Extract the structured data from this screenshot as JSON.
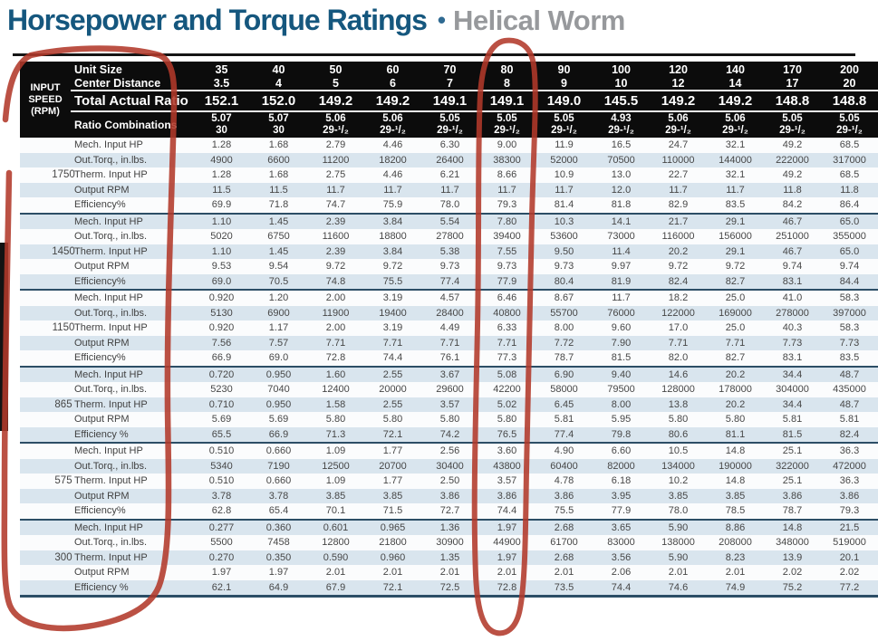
{
  "title": {
    "main": "Horsepower and Torque Ratings",
    "separator": "•",
    "sub": "Helical Worm"
  },
  "table": {
    "corner_label": "INPUT\nSPEED\n(RPM)",
    "header_labels": {
      "unit_size": "Unit Size",
      "center_distance": "Center Distance",
      "total_ratio": "Total Actual Ratio",
      "ratio_combos": "Ratio Combinations"
    },
    "columns": [
      {
        "unit_size": "35",
        "center_distance": "3.5",
        "total_ratio": "152.1",
        "combo_top": "5.07",
        "combo_bottom": "30"
      },
      {
        "unit_size": "40",
        "center_distance": "4",
        "total_ratio": "152.0",
        "combo_top": "5.07",
        "combo_bottom": "30"
      },
      {
        "unit_size": "50",
        "center_distance": "5",
        "total_ratio": "149.2",
        "combo_top": "5.06",
        "combo_bottom": "29-¹/₂"
      },
      {
        "unit_size": "60",
        "center_distance": "6",
        "total_ratio": "149.2",
        "combo_top": "5.06",
        "combo_bottom": "29-¹/₂"
      },
      {
        "unit_size": "70",
        "center_distance": "7",
        "total_ratio": "149.1",
        "combo_top": "5.05",
        "combo_bottom": "29-¹/₂"
      },
      {
        "unit_size": "80",
        "center_distance": "8",
        "total_ratio": "149.1",
        "combo_top": "5.05",
        "combo_bottom": "29-¹/₂"
      },
      {
        "unit_size": "90",
        "center_distance": "9",
        "total_ratio": "149.0",
        "combo_top": "5.05",
        "combo_bottom": "29-¹/₂"
      },
      {
        "unit_size": "100",
        "center_distance": "10",
        "total_ratio": "145.5",
        "combo_top": "4.93",
        "combo_bottom": "29-¹/₂"
      },
      {
        "unit_size": "120",
        "center_distance": "12",
        "total_ratio": "149.2",
        "combo_top": "5.06",
        "combo_bottom": "29-¹/₂"
      },
      {
        "unit_size": "140",
        "center_distance": "14",
        "total_ratio": "149.2",
        "combo_top": "5.06",
        "combo_bottom": "29-¹/₂"
      },
      {
        "unit_size": "170",
        "center_distance": "17",
        "total_ratio": "148.8",
        "combo_top": "5.05",
        "combo_bottom": "29-¹/₂"
      },
      {
        "unit_size": "200",
        "center_distance": "20",
        "total_ratio": "148.8",
        "combo_top": "5.05",
        "combo_bottom": "29-¹/₂"
      }
    ],
    "groups": [
      {
        "rpm": "1750",
        "rows": [
          {
            "label": "Mech. Input HP",
            "values": [
              "1.28",
              "1.68",
              "2.79",
              "4.46",
              "6.30",
              "9.00",
              "11.9",
              "16.5",
              "24.7",
              "32.1",
              "49.2",
              "68.5"
            ]
          },
          {
            "label": "Out.Torq., in.lbs.",
            "values": [
              "4900",
              "6600",
              "11200",
              "18200",
              "26400",
              "38300",
              "52000",
              "70500",
              "110000",
              "144000",
              "222000",
              "317000"
            ]
          },
          {
            "label": "Therm. Input HP",
            "values": [
              "1.28",
              "1.68",
              "2.75",
              "4.46",
              "6.21",
              "8.66",
              "10.9",
              "13.0",
              "22.7",
              "32.1",
              "49.2",
              "68.5"
            ]
          },
          {
            "label": "Output RPM",
            "values": [
              "11.5",
              "11.5",
              "11.7",
              "11.7",
              "11.7",
              "11.7",
              "11.7",
              "12.0",
              "11.7",
              "11.7",
              "11.8",
              "11.8"
            ]
          },
          {
            "label": "Efficiency%",
            "values": [
              "69.9",
              "71.8",
              "74.7",
              "75.9",
              "78.0",
              "79.3",
              "81.4",
              "81.8",
              "82.9",
              "83.5",
              "84.2",
              "86.4"
            ]
          }
        ]
      },
      {
        "rpm": "1450",
        "rows": [
          {
            "label": "Mech. Input HP",
            "values": [
              "1.10",
              "1.45",
              "2.39",
              "3.84",
              "5.54",
              "7.80",
              "10.3",
              "14.1",
              "21.7",
              "29.1",
              "46.7",
              "65.0"
            ]
          },
          {
            "label": "Out.Torq., in.lbs.",
            "values": [
              "5020",
              "6750",
              "11600",
              "18800",
              "27800",
              "39400",
              "53600",
              "73000",
              "116000",
              "156000",
              "251000",
              "355000"
            ]
          },
          {
            "label": "Therm. Input HP",
            "values": [
              "1.10",
              "1.45",
              "2.39",
              "3.84",
              "5.38",
              "7.55",
              "9.50",
              "11.4",
              "20.2",
              "29.1",
              "46.7",
              "65.0"
            ]
          },
          {
            "label": "Output RPM",
            "values": [
              "9.53",
              "9.54",
              "9.72",
              "9.72",
              "9.73",
              "9.73",
              "9.73",
              "9.97",
              "9.72",
              "9.72",
              "9.74",
              "9.74"
            ]
          },
          {
            "label": "Efficiency%",
            "values": [
              "69.0",
              "70.5",
              "74.8",
              "75.5",
              "77.4",
              "77.9",
              "80.4",
              "81.9",
              "82.4",
              "82.7",
              "83.1",
              "84.4"
            ]
          }
        ]
      },
      {
        "rpm": "1150",
        "rows": [
          {
            "label": "Mech. Input HP",
            "values": [
              "0.920",
              "1.20",
              "2.00",
              "3.19",
              "4.57",
              "6.46",
              "8.67",
              "11.7",
              "18.2",
              "25.0",
              "41.0",
              "58.3"
            ]
          },
          {
            "label": "Out.Torq., in.lbs.",
            "values": [
              "5130",
              "6900",
              "11900",
              "19400",
              "28400",
              "40800",
              "55700",
              "76000",
              "122000",
              "169000",
              "278000",
              "397000"
            ]
          },
          {
            "label": "Therm. Input HP",
            "values": [
              "0.920",
              "1.17",
              "2.00",
              "3.19",
              "4.49",
              "6.33",
              "8.00",
              "9.60",
              "17.0",
              "25.0",
              "40.3",
              "58.3"
            ]
          },
          {
            "label": "Output RPM",
            "values": [
              "7.56",
              "7.57",
              "7.71",
              "7.71",
              "7.71",
              "7.71",
              "7.72",
              "7.90",
              "7.71",
              "7.71",
              "7.73",
              "7.73"
            ]
          },
          {
            "label": "Efficiency%",
            "values": [
              "66.9",
              "69.0",
              "72.8",
              "74.4",
              "76.1",
              "77.3",
              "78.7",
              "81.5",
              "82.0",
              "82.7",
              "83.1",
              "83.5"
            ]
          }
        ]
      },
      {
        "rpm": "865",
        "rows": [
          {
            "label": "Mech. Input HP",
            "values": [
              "0.720",
              "0.950",
              "1.60",
              "2.55",
              "3.67",
              "5.08",
              "6.90",
              "9.40",
              "14.6",
              "20.2",
              "34.4",
              "48.7"
            ]
          },
          {
            "label": "Out.Torq., in.lbs.",
            "values": [
              "5230",
              "7040",
              "12400",
              "20000",
              "29600",
              "42200",
              "58000",
              "79500",
              "128000",
              "178000",
              "304000",
              "435000"
            ]
          },
          {
            "label": "Therm. Input HP",
            "values": [
              "0.710",
              "0.950",
              "1.58",
              "2.55",
              "3.57",
              "5.02",
              "6.45",
              "8.00",
              "13.8",
              "20.2",
              "34.4",
              "48.7"
            ]
          },
          {
            "label": "Output RPM",
            "values": [
              "5.69",
              "5.69",
              "5.80",
              "5.80",
              "5.80",
              "5.80",
              "5.81",
              "5.95",
              "5.80",
              "5.80",
              "5.81",
              "5.81"
            ]
          },
          {
            "label": "Efficiency %",
            "values": [
              "65.5",
              "66.9",
              "71.3",
              "72.1",
              "74.2",
              "76.5",
              "77.4",
              "79.8",
              "80.6",
              "81.1",
              "81.5",
              "82.4"
            ]
          }
        ]
      },
      {
        "rpm": "575",
        "rows": [
          {
            "label": "Mech. Input HP",
            "values": [
              "0.510",
              "0.660",
              "1.09",
              "1.77",
              "2.56",
              "3.60",
              "4.90",
              "6.60",
              "10.5",
              "14.8",
              "25.1",
              "36.3"
            ]
          },
          {
            "label": "Out.Torq., in.lbs.",
            "values": [
              "5340",
              "7190",
              "12500",
              "20700",
              "30400",
              "43800",
              "60400",
              "82000",
              "134000",
              "190000",
              "322000",
              "472000"
            ]
          },
          {
            "label": "Therm. Input HP",
            "values": [
              "0.510",
              "0.660",
              "1.09",
              "1.77",
              "2.50",
              "3.57",
              "4.78",
              "6.18",
              "10.2",
              "14.8",
              "25.1",
              "36.3"
            ]
          },
          {
            "label": "Output RPM",
            "values": [
              "3.78",
              "3.78",
              "3.85",
              "3.85",
              "3.86",
              "3.86",
              "3.86",
              "3.95",
              "3.85",
              "3.85",
              "3.86",
              "3.86"
            ]
          },
          {
            "label": "Efficiency%",
            "values": [
              "62.8",
              "65.4",
              "70.1",
              "71.5",
              "72.7",
              "74.4",
              "75.5",
              "77.9",
              "78.0",
              "78.5",
              "78.7",
              "79.3"
            ]
          }
        ]
      },
      {
        "rpm": "300",
        "rows": [
          {
            "label": "Mech. Input HP",
            "values": [
              "0.277",
              "0.360",
              "0.601",
              "0.965",
              "1.36",
              "1.97",
              "2.68",
              "3.65",
              "5.90",
              "8.86",
              "14.8",
              "21.5"
            ]
          },
          {
            "label": "Out.Torq., in.lbs.",
            "values": [
              "5500",
              "7458",
              "12800",
              "21800",
              "30900",
              "44900",
              "61700",
              "83000",
              "138000",
              "208000",
              "348000",
              "519000"
            ]
          },
          {
            "label": "Therm. Input HP",
            "values": [
              "0.270",
              "0.350",
              "0.590",
              "0.960",
              "1.35",
              "1.97",
              "2.68",
              "3.56",
              "5.90",
              "8.23",
              "13.9",
              "20.1"
            ]
          },
          {
            "label": "Output RPM",
            "values": [
              "1.97",
              "1.97",
              "2.01",
              "2.01",
              "2.01",
              "2.01",
              "2.01",
              "2.06",
              "2.01",
              "2.01",
              "2.02",
              "2.02"
            ]
          },
          {
            "label": "Efficiency %",
            "values": [
              "62.1",
              "64.9",
              "67.9",
              "72.1",
              "72.5",
              "72.8",
              "73.5",
              "74.4",
              "74.6",
              "74.9",
              "75.2",
              "77.2"
            ]
          }
        ]
      }
    ]
  },
  "annotations": {
    "pen_color": "#b2392a",
    "left_circle_target": "INPUT SPEED (RPM) and row-label columns",
    "right_circle_target": "Unit Size 80 column"
  },
  "colors": {
    "title_blue": "#15577e",
    "subtitle_gray": "#97999c",
    "header_bg": "#0c0c0c",
    "stripe_blue": "#d9e5ee",
    "separator_blue": "#2c4e66"
  }
}
